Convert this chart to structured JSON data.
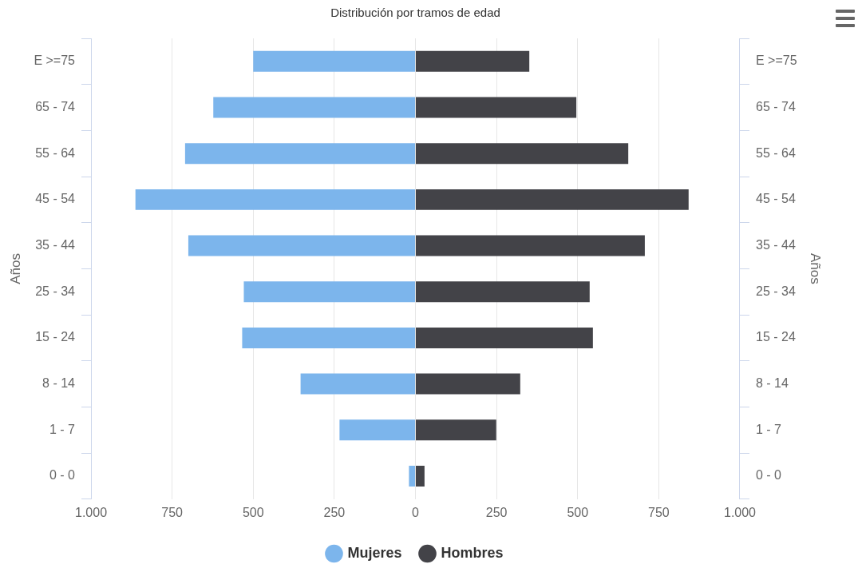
{
  "chart_data": {
    "type": "bar",
    "title": "Distribución por tramos de edad",
    "orientation": "horizontal",
    "stacked": true,
    "categories": [
      "E >=75",
      "65 - 74",
      "55 - 64",
      "45 - 54",
      "35 - 44",
      "25 - 34",
      "15 - 24",
      "8 - 14",
      "1 - 7",
      "0 - 0"
    ],
    "series": [
      {
        "name": "Mujeres",
        "color": "#7cb5ec",
        "values": [
          -500,
          -623,
          -710,
          -863,
          -700,
          -529,
          -534,
          -354,
          -234,
          -20
        ]
      },
      {
        "name": "Hombres",
        "color": "#434348",
        "values": [
          351,
          496,
          656,
          842,
          707,
          537,
          547,
          323,
          249,
          28
        ]
      }
    ],
    "ylabel": "Años",
    "y2label": "Años",
    "xlim": [
      -1000,
      1000
    ],
    "xticks": [
      {
        "value": -1000,
        "label": "1.000"
      },
      {
        "value": -750,
        "label": "750"
      },
      {
        "value": -500,
        "label": "500"
      },
      {
        "value": -250,
        "label": "250"
      },
      0,
      250,
      500,
      750,
      {
        "value": 1000,
        "label": "1.000"
      }
    ],
    "grid": "x",
    "legend": "bottom"
  }
}
